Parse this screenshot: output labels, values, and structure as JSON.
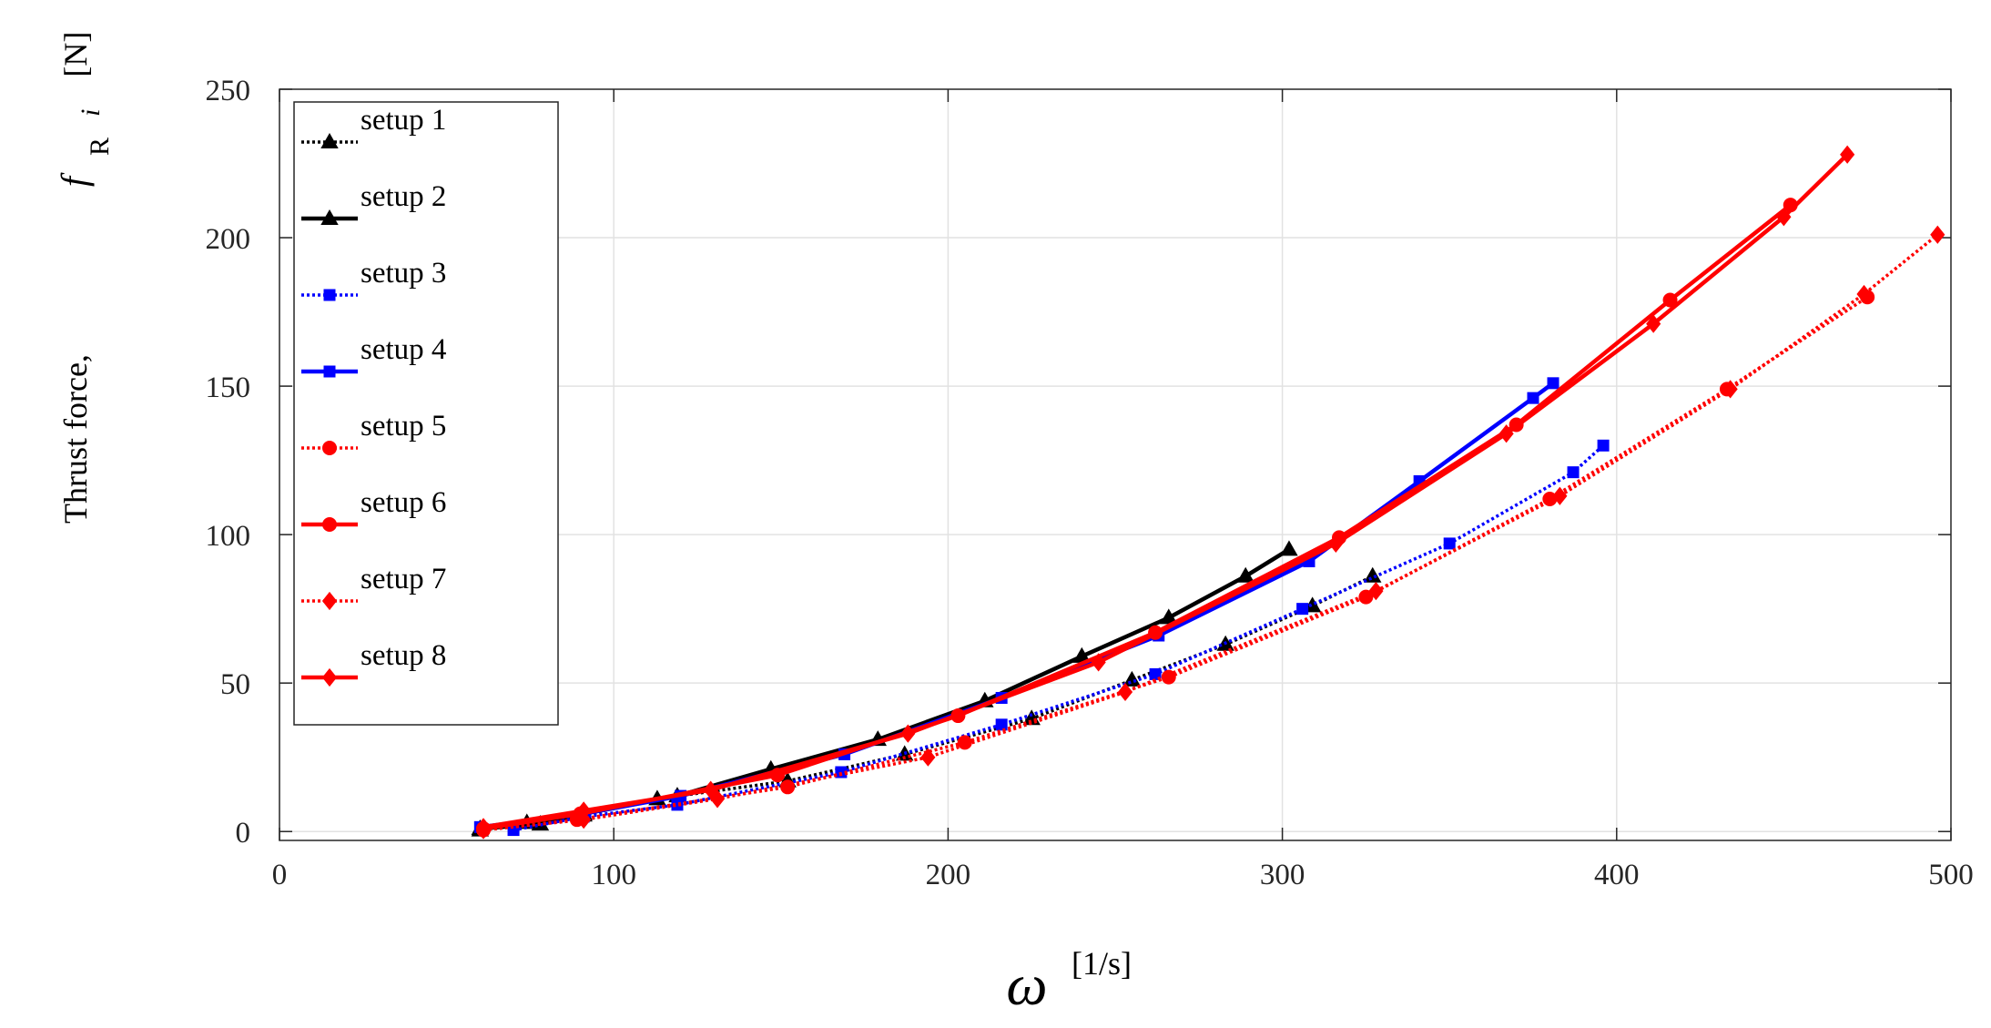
{
  "chart_data": {
    "type": "line",
    "title": "",
    "xlabel": {
      "symbol": "ω",
      "unit": "[1/s]"
    },
    "ylabel": {
      "prefix": "Thrust force,",
      "symbol": "f",
      "subscript_1": "R",
      "subscript_2": "i",
      "unit": "[N]"
    },
    "xlim": [
      0,
      500
    ],
    "ylim": [
      -3,
      250
    ],
    "xticks": [
      0,
      100,
      200,
      300,
      400,
      500
    ],
    "yticks": [
      0,
      50,
      100,
      150,
      200,
      250
    ],
    "xtick_labels": [
      "0",
      "100",
      "200",
      "300",
      "400",
      "500"
    ],
    "ytick_labels": [
      "0",
      "50",
      "100",
      "150",
      "200",
      "250"
    ],
    "grid": true,
    "legend_position": "top-left",
    "series": [
      {
        "name": "setup 1",
        "color": "#000000",
        "style": "dotted",
        "marker": "triangle",
        "x": [
          60,
          74,
          91,
          113,
          152,
          187,
          225,
          255,
          283,
          309,
          327
        ],
        "y": [
          0.5,
          3,
          5.5,
          11,
          17,
          26,
          38,
          51,
          63,
          76,
          86
        ]
      },
      {
        "name": "setup 2",
        "color": "#000000",
        "style": "solid",
        "marker": "triangle",
        "x": [
          60,
          78,
          91,
          119,
          147,
          179,
          211,
          240,
          266,
          289,
          302
        ],
        "y": [
          1,
          2.5,
          6,
          12,
          21,
          31,
          44,
          59,
          72,
          86,
          95
        ]
      },
      {
        "name": "setup 3",
        "color": "#0000ff",
        "style": "dotted",
        "marker": "square",
        "x": [
          70,
          91,
          119,
          168,
          216,
          262,
          306,
          350,
          387,
          396
        ],
        "y": [
          0.5,
          5,
          9,
          20,
          36,
          53,
          75,
          97,
          121,
          130
        ]
      },
      {
        "name": "setup 4",
        "color": "#0000ff",
        "style": "solid",
        "marker": "square",
        "x": [
          60,
          91,
          120,
          169,
          216,
          263,
          308,
          341,
          375,
          381
        ],
        "y": [
          1.5,
          6,
          12,
          26,
          45,
          66,
          91,
          118,
          146,
          151
        ]
      },
      {
        "name": "setup 5",
        "color": "#ff0000",
        "style": "dotted",
        "marker": "circle",
        "x": [
          61,
          89,
          152,
          205,
          266,
          325,
          380,
          433,
          475
        ],
        "y": [
          0.5,
          4,
          15,
          30,
          52,
          79,
          112,
          149,
          180
        ]
      },
      {
        "name": "setup 6",
        "color": "#ff0000",
        "style": "solid",
        "marker": "circle",
        "x": [
          61,
          90,
          149,
          203,
          262,
          317,
          370,
          416,
          452
        ],
        "y": [
          1,
          6,
          19,
          39,
          67,
          99,
          137,
          179,
          211
        ]
      },
      {
        "name": "setup 7",
        "color": "#ff0000",
        "style": "dotted",
        "marker": "diamond",
        "x": [
          61,
          91,
          131,
          194,
          253,
          328,
          383,
          434,
          474,
          496
        ],
        "y": [
          0.5,
          4,
          11,
          25,
          47,
          81,
          113,
          149,
          181,
          201
        ]
      },
      {
        "name": "setup 8",
        "color": "#ff0000",
        "style": "solid",
        "marker": "diamond",
        "x": [
          61,
          91,
          129,
          188,
          245,
          316,
          367,
          411,
          450,
          469
        ],
        "y": [
          1.5,
          7,
          14,
          33,
          57,
          97,
          134,
          171,
          207,
          228
        ]
      }
    ]
  }
}
